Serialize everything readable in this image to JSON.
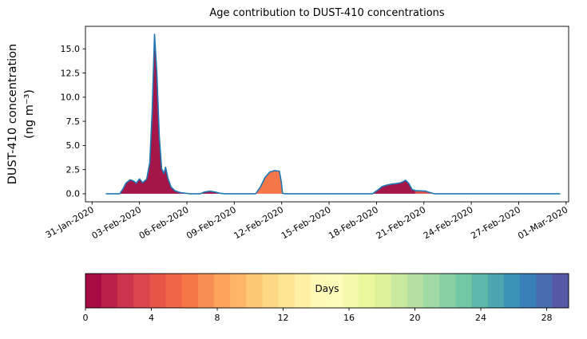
{
  "chart_data": {
    "type": "area",
    "title": "Age contribution to DUST-410 concentrations",
    "ylabel": {
      "line1": "DUST-410 concentration",
      "line2": "(ng m⁻³)"
    },
    "xlim": [
      -0.42,
      30.16
    ],
    "ylim": [
      -0.83,
      17.33
    ],
    "yticks": [
      0.0,
      2.5,
      5.0,
      7.5,
      10.0,
      12.5,
      15.0
    ],
    "xticks": [
      {
        "day": 0,
        "label": "31-Jan-2020"
      },
      {
        "day": 3,
        "label": "03-Feb-2020"
      },
      {
        "day": 6,
        "label": "06-Feb-2020"
      },
      {
        "day": 9,
        "label": "09-Feb-2020"
      },
      {
        "day": 12,
        "label": "12-Feb-2020"
      },
      {
        "day": 15,
        "label": "15-Feb-2020"
      },
      {
        "day": 18,
        "label": "18-Feb-2020"
      },
      {
        "day": 21,
        "label": "21-Feb-2020"
      },
      {
        "day": 24,
        "label": "24-Feb-2020"
      },
      {
        "day": 27,
        "label": "27-Feb-2020"
      },
      {
        "day": 30,
        "label": "01-Mar-2020"
      }
    ],
    "line_color": "#1f77b4",
    "axis_color": "#000000",
    "background": "#ffffff",
    "points": [
      [
        0.9,
        0
      ],
      [
        1.75,
        0
      ],
      [
        1.95,
        0.5
      ],
      [
        2.15,
        1.1
      ],
      [
        2.4,
        1.45
      ],
      [
        2.6,
        1.35
      ],
      [
        2.8,
        1.1
      ],
      [
        3.0,
        1.55
      ],
      [
        3.2,
        1.15
      ],
      [
        3.45,
        1.5
      ],
      [
        3.65,
        3.2
      ],
      [
        3.8,
        8.5
      ],
      [
        3.95,
        16.5
      ],
      [
        4.1,
        12.5
      ],
      [
        4.25,
        6.0
      ],
      [
        4.4,
        2.6
      ],
      [
        4.55,
        2.1
      ],
      [
        4.65,
        2.75
      ],
      [
        4.8,
        1.6
      ],
      [
        5.0,
        0.7
      ],
      [
        5.25,
        0.3
      ],
      [
        5.6,
        0.12
      ],
      [
        6.2,
        0.0
      ],
      [
        6.85,
        0.0
      ],
      [
        7.1,
        0.18
      ],
      [
        7.45,
        0.27
      ],
      [
        7.8,
        0.18
      ],
      [
        8.1,
        0.05
      ],
      [
        8.4,
        0.0
      ],
      [
        10.35,
        0.0
      ],
      [
        10.65,
        0.7
      ],
      [
        10.95,
        1.7
      ],
      [
        11.25,
        2.25
      ],
      [
        11.55,
        2.4
      ],
      [
        11.85,
        2.35
      ],
      [
        11.98,
        1.2
      ],
      [
        12.05,
        0.05
      ],
      [
        12.2,
        0.0
      ],
      [
        17.75,
        0.0
      ],
      [
        18.05,
        0.35
      ],
      [
        18.35,
        0.75
      ],
      [
        18.65,
        0.9
      ],
      [
        18.95,
        1.0
      ],
      [
        19.25,
        1.05
      ],
      [
        19.55,
        1.15
      ],
      [
        19.85,
        1.4
      ],
      [
        20.05,
        1.05
      ],
      [
        20.25,
        0.45
      ],
      [
        20.45,
        0.33
      ],
      [
        20.8,
        0.3
      ],
      [
        21.1,
        0.28
      ],
      [
        21.4,
        0.12
      ],
      [
        21.65,
        0.0
      ],
      [
        29.6,
        0.0
      ]
    ],
    "regions": [
      {
        "start": 1.75,
        "end": 6.2,
        "fill": "#a41647"
      },
      {
        "start": 6.85,
        "end": 8.4,
        "fill": "#a41647"
      },
      {
        "start": 10.35,
        "end": 12.2,
        "fill": "#f5764b"
      },
      {
        "start": 17.75,
        "end": 20.45,
        "fill": "#a41647"
      },
      {
        "start": 20.45,
        "end": 21.65,
        "fill": "#dd4f4d"
      }
    ],
    "colorbar": {
      "label": "Days",
      "ticks": [
        0,
        4,
        8,
        12,
        16,
        20,
        24,
        28
      ],
      "vmax": 29.33,
      "segments": 30,
      "spectral_anchors": [
        "#9e0142",
        "#d53e4f",
        "#f46d43",
        "#fdae61",
        "#fee08b",
        "#ffffbf",
        "#e6f598",
        "#abdda4",
        "#66c2a5",
        "#3288bd",
        "#5e4fa2"
      ]
    }
  }
}
